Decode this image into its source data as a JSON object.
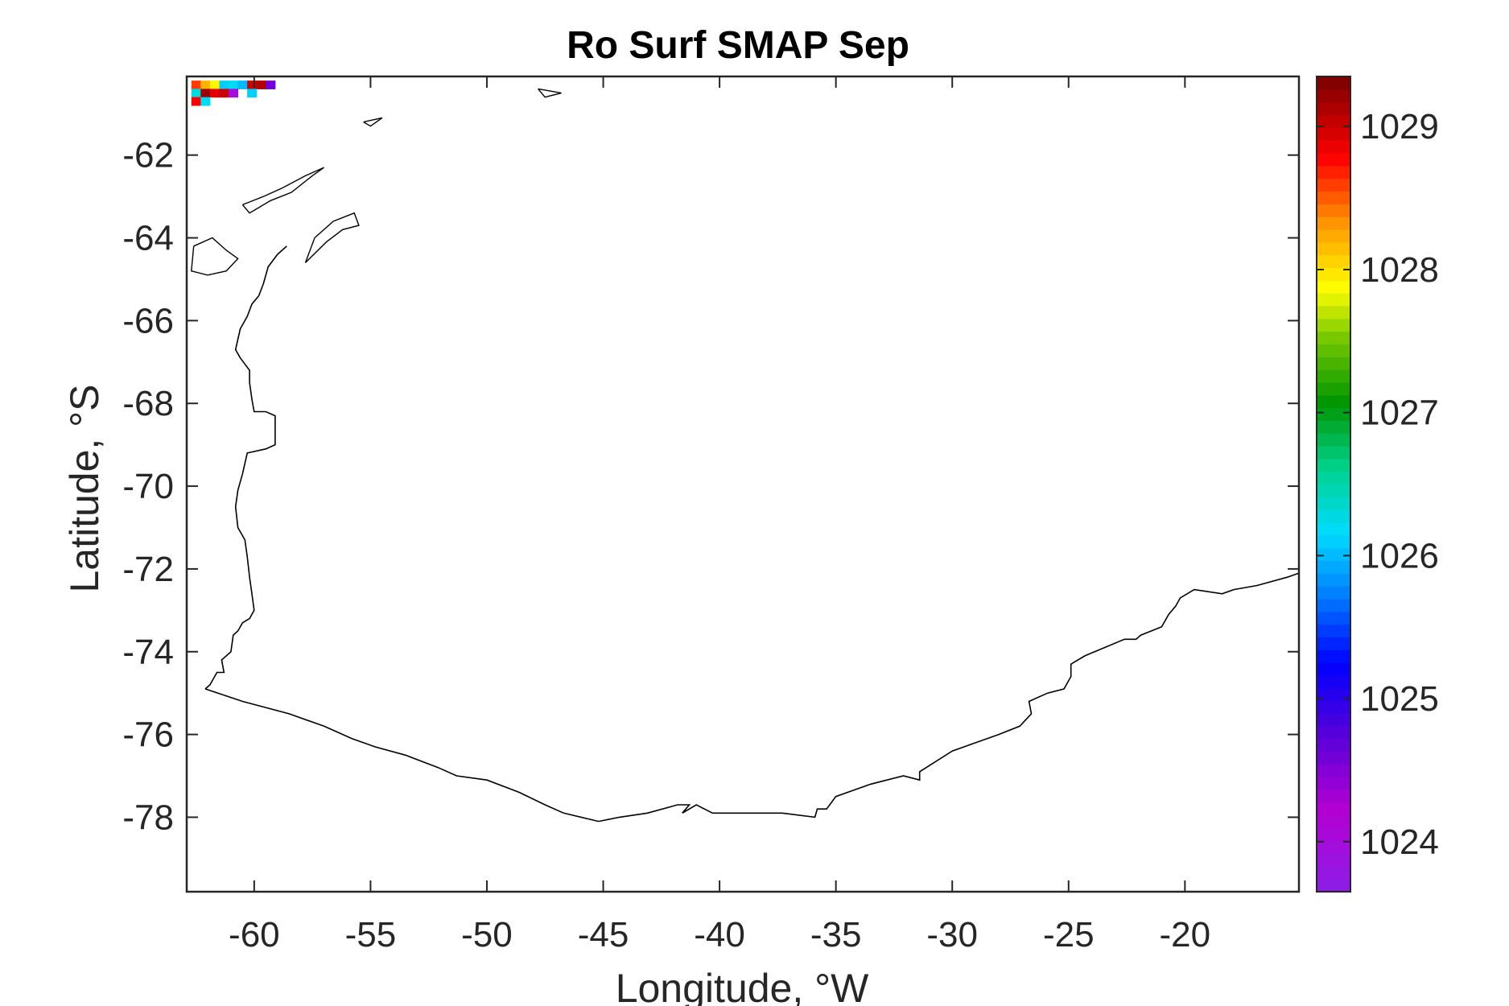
{
  "chart_data": {
    "type": "heatmap",
    "title": "Ro Surf SMAP Sep",
    "xlabel": "Longitude, °W",
    "ylabel": "Latitude, °S",
    "xlim": [
      -62.9,
      -15.1
    ],
    "ylim": [
      -79.8,
      -60.1
    ],
    "xticks": [
      -60,
      -55,
      -50,
      -45,
      -40,
      -35,
      -30,
      -25,
      -20
    ],
    "yticks": [
      -62,
      -64,
      -66,
      -68,
      -70,
      -72,
      -74,
      -76,
      -78
    ],
    "colorbar": {
      "clim": [
        1023.65,
        1029.35
      ],
      "ticks": [
        1024,
        1025,
        1026,
        1027,
        1028,
        1029
      ],
      "levels": 64,
      "colormap": "rainbow (purple-blue-cyan-green-yellow-red-darkred)"
    },
    "grid": false,
    "cells": [
      {
        "lon": -62.5,
        "lat": -60.3,
        "value": 1028.6
      },
      {
        "lon": -62.1,
        "lat": -60.3,
        "value": 1028.2
      },
      {
        "lon": -61.7,
        "lat": -60.3,
        "value": 1027.9
      },
      {
        "lon": -61.3,
        "lat": -60.3,
        "value": 1026.1
      },
      {
        "lon": -60.9,
        "lat": -60.3,
        "value": 1026.2
      },
      {
        "lon": -60.5,
        "lat": -60.3,
        "value": 1026.0
      },
      {
        "lon": -60.1,
        "lat": -60.3,
        "value": 1029.0
      },
      {
        "lon": -59.7,
        "lat": -60.3,
        "value": 1029.1
      },
      {
        "lon": -59.3,
        "lat": -60.3,
        "value": 1024.6
      },
      {
        "lon": -62.5,
        "lat": -60.5,
        "value": 1026.3
      },
      {
        "lon": -62.1,
        "lat": -60.5,
        "value": 1029.2
      },
      {
        "lon": -61.7,
        "lat": -60.5,
        "value": 1028.9
      },
      {
        "lon": -61.3,
        "lat": -60.5,
        "value": 1029.0
      },
      {
        "lon": -60.9,
        "lat": -60.5,
        "value": 1024.0
      },
      {
        "lon": -60.1,
        "lat": -60.5,
        "value": 1026.1
      },
      {
        "lon": -62.5,
        "lat": -60.7,
        "value": 1028.8
      },
      {
        "lon": -62.1,
        "lat": -60.7,
        "value": 1026.2
      }
    ],
    "coastline": [
      [
        -62.1,
        -74.9
      ],
      [
        -61.9,
        -74.8
      ],
      [
        -61.6,
        -74.5
      ],
      [
        -61.3,
        -74.5
      ],
      [
        -61.4,
        -74.2
      ],
      [
        -61.0,
        -74.0
      ],
      [
        -60.9,
        -73.6
      ],
      [
        -60.7,
        -73.5
      ],
      [
        -60.5,
        -73.3
      ],
      [
        -60.2,
        -73.2
      ],
      [
        -60.0,
        -73.0
      ],
      [
        -60.1,
        -72.6
      ],
      [
        -60.2,
        -72.2
      ],
      [
        -60.3,
        -71.7
      ],
      [
        -60.4,
        -71.3
      ],
      [
        -60.7,
        -71.0
      ],
      [
        -60.8,
        -70.5
      ],
      [
        -60.7,
        -70.1
      ],
      [
        -60.5,
        -69.7
      ],
      [
        -60.3,
        -69.2
      ],
      [
        -59.5,
        -69.1
      ],
      [
        -59.1,
        -69.0
      ],
      [
        -59.1,
        -68.3
      ],
      [
        -59.5,
        -68.2
      ],
      [
        -60.0,
        -68.2
      ],
      [
        -60.1,
        -67.9
      ],
      [
        -60.2,
        -67.5
      ],
      [
        -60.2,
        -67.2
      ],
      [
        -60.6,
        -66.9
      ],
      [
        -60.8,
        -66.7
      ],
      [
        -60.6,
        -66.2
      ],
      [
        -60.3,
        -65.9
      ],
      [
        -60.1,
        -65.6
      ],
      [
        -59.8,
        -65.4
      ],
      [
        -59.6,
        -65.1
      ],
      [
        -59.4,
        -64.7
      ],
      [
        -59.0,
        -64.4
      ],
      [
        -58.6,
        -64.2
      ]
    ],
    "coastline_south": [
      [
        -62.1,
        -74.9
      ],
      [
        -60.5,
        -75.2
      ],
      [
        -58.5,
        -75.5
      ],
      [
        -57.0,
        -75.8
      ],
      [
        -55.8,
        -76.1
      ],
      [
        -54.8,
        -76.3
      ],
      [
        -53.5,
        -76.5
      ],
      [
        -52.1,
        -76.8
      ],
      [
        -51.3,
        -77.0
      ],
      [
        -50.0,
        -77.1
      ],
      [
        -48.6,
        -77.4
      ],
      [
        -47.5,
        -77.7
      ],
      [
        -46.7,
        -77.9
      ],
      [
        -45.2,
        -78.1
      ],
      [
        -44.3,
        -78.0
      ],
      [
        -43.1,
        -77.9
      ],
      [
        -41.8,
        -77.7
      ],
      [
        -41.3,
        -77.7
      ],
      [
        -41.6,
        -77.9
      ],
      [
        -41.0,
        -77.7
      ],
      [
        -40.3,
        -77.9
      ],
      [
        -38.6,
        -77.9
      ],
      [
        -37.3,
        -77.9
      ],
      [
        -35.9,
        -78.0
      ],
      [
        -35.8,
        -77.8
      ],
      [
        -35.4,
        -77.8
      ],
      [
        -35.0,
        -77.5
      ],
      [
        -33.5,
        -77.2
      ],
      [
        -32.1,
        -77.0
      ],
      [
        -31.4,
        -77.1
      ],
      [
        -31.4,
        -76.9
      ],
      [
        -30.0,
        -76.4
      ],
      [
        -29.0,
        -76.2
      ],
      [
        -28.0,
        -76.0
      ],
      [
        -27.1,
        -75.8
      ],
      [
        -26.6,
        -75.5
      ],
      [
        -26.7,
        -75.2
      ],
      [
        -25.9,
        -75.0
      ],
      [
        -25.2,
        -74.9
      ],
      [
        -24.9,
        -74.6
      ],
      [
        -24.9,
        -74.3
      ],
      [
        -24.3,
        -74.1
      ],
      [
        -22.6,
        -73.7
      ],
      [
        -22.1,
        -73.7
      ],
      [
        -21.9,
        -73.6
      ],
      [
        -21.0,
        -73.4
      ],
      [
        -20.7,
        -73.1
      ],
      [
        -20.4,
        -72.9
      ],
      [
        -20.2,
        -72.7
      ],
      [
        -19.6,
        -72.5
      ],
      [
        -18.4,
        -72.6
      ],
      [
        -17.9,
        -72.5
      ],
      [
        -16.9,
        -72.4
      ],
      [
        -15.6,
        -72.2
      ],
      [
        -15.1,
        -72.1
      ]
    ],
    "islands": [
      [
        [
          -60.5,
          -63.2
        ],
        [
          -59.6,
          -63.0
        ],
        [
          -58.8,
          -62.8
        ],
        [
          -57.8,
          -62.5
        ],
        [
          -57.0,
          -62.3
        ],
        [
          -57.5,
          -62.5
        ],
        [
          -58.4,
          -62.9
        ],
        [
          -59.3,
          -63.1
        ],
        [
          -60.2,
          -63.4
        ],
        [
          -60.5,
          -63.2
        ]
      ],
      [
        [
          -57.4,
          -64.0
        ],
        [
          -56.6,
          -63.6
        ],
        [
          -55.7,
          -63.4
        ],
        [
          -55.5,
          -63.7
        ],
        [
          -56.2,
          -63.8
        ],
        [
          -56.9,
          -64.1
        ],
        [
          -57.8,
          -64.6
        ],
        [
          -57.6,
          -64.3
        ],
        [
          -57.4,
          -64.0
        ]
      ],
      [
        [
          -55.3,
          -61.2
        ],
        [
          -54.5,
          -61.1
        ],
        [
          -55.0,
          -61.3
        ],
        [
          -55.3,
          -61.2
        ]
      ],
      [
        [
          -62.6,
          -64.2
        ],
        [
          -61.8,
          -64.0
        ],
        [
          -61.2,
          -64.3
        ],
        [
          -60.7,
          -64.5
        ],
        [
          -61.2,
          -64.8
        ],
        [
          -62.0,
          -64.9
        ],
        [
          -62.7,
          -64.8
        ],
        [
          -62.6,
          -64.2
        ]
      ],
      [
        [
          -47.8,
          -60.4
        ],
        [
          -46.8,
          -60.5
        ],
        [
          -47.5,
          -60.6
        ],
        [
          -47.8,
          -60.4
        ]
      ]
    ]
  }
}
